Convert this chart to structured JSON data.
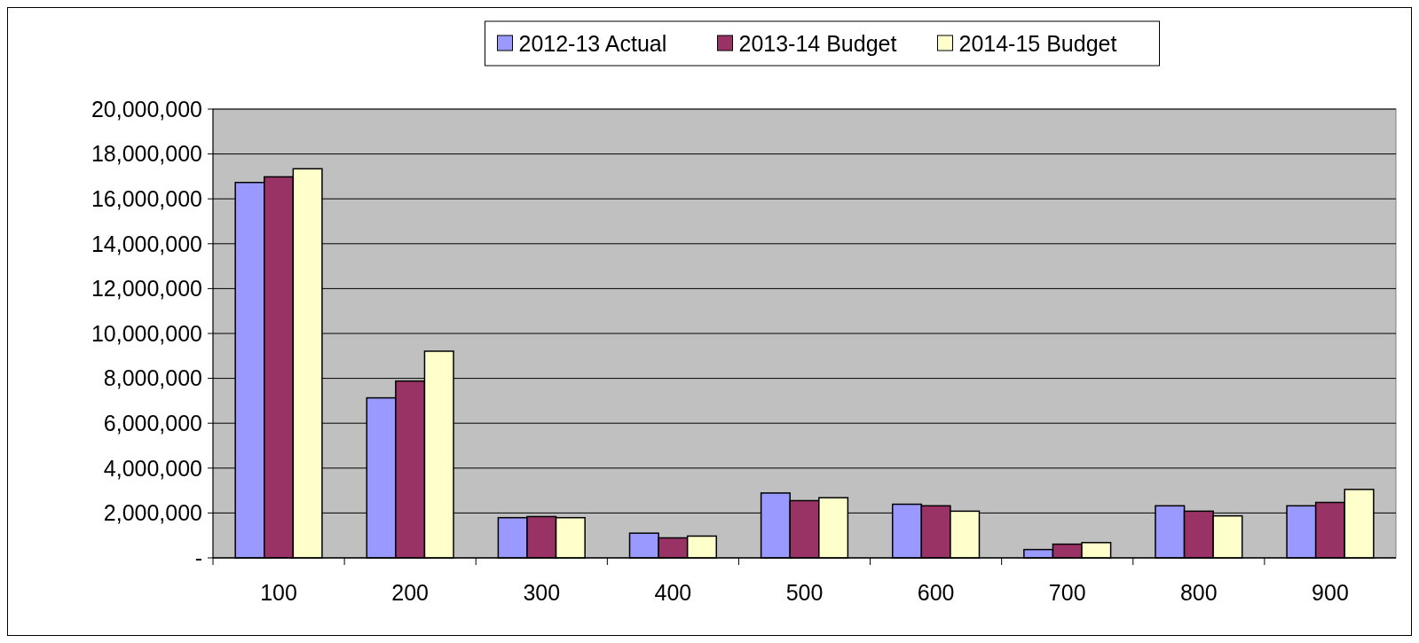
{
  "chart_data": {
    "type": "bar",
    "categories": [
      "100",
      "200",
      "300",
      "400",
      "500",
      "600",
      "700",
      "800",
      "900"
    ],
    "series": [
      {
        "name": "2012-13 Actual",
        "color": "#9999ff",
        "values": [
          16730000,
          7130000,
          1790000,
          1100000,
          2890000,
          2390000,
          370000,
          2320000,
          2320000
        ]
      },
      {
        "name": "2013-14 Budget",
        "color": "#993366",
        "values": [
          16980000,
          7880000,
          1840000,
          890000,
          2550000,
          2320000,
          610000,
          2080000,
          2470000
        ]
      },
      {
        "name": "2014-15 Budget",
        "color": "#ffffcc",
        "values": [
          17340000,
          9210000,
          1790000,
          970000,
          2680000,
          2080000,
          680000,
          1870000,
          3050000
        ]
      }
    ],
    "ylim": [
      0,
      20000000
    ],
    "yticks": [
      {
        "value": 0,
        "label": "-"
      },
      {
        "value": 2000000,
        "label": "2,000,000"
      },
      {
        "value": 4000000,
        "label": "4,000,000"
      },
      {
        "value": 6000000,
        "label": "6,000,000"
      },
      {
        "value": 8000000,
        "label": "8,000,000"
      },
      {
        "value": 10000000,
        "label": "10,000,000"
      },
      {
        "value": 12000000,
        "label": "12,000,000"
      },
      {
        "value": 14000000,
        "label": "14,000,000"
      },
      {
        "value": 16000000,
        "label": "16,000,000"
      },
      {
        "value": 18000000,
        "label": "18,000,000"
      },
      {
        "value": 20000000,
        "label": "20,000,000"
      }
    ],
    "grid": "y",
    "legend": "top"
  }
}
